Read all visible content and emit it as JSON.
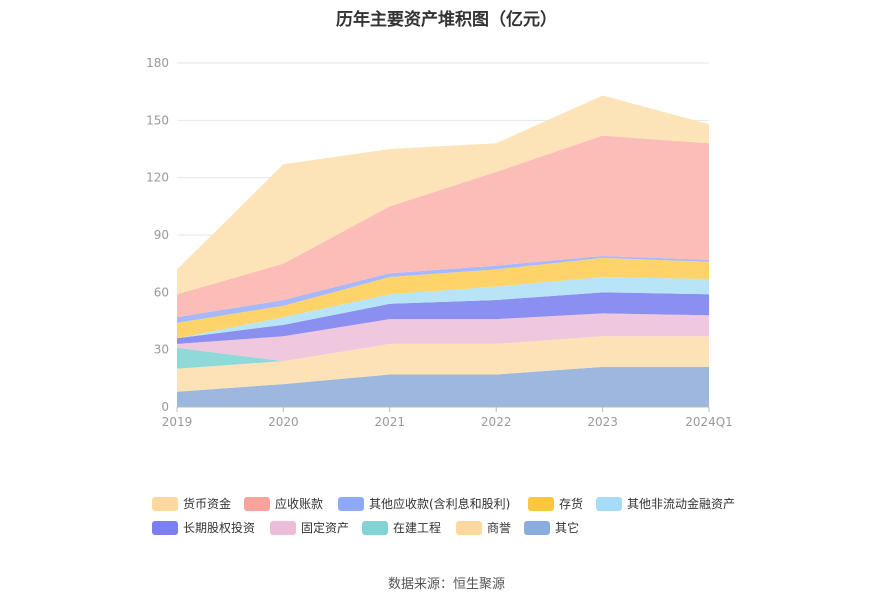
{
  "title": "历年主要资产堆积图（亿元）",
  "source": "数据来源：恒生聚源",
  "chart_data": {
    "type": "area",
    "stacked": true,
    "categories": [
      "2019",
      "2020",
      "2021",
      "2022",
      "2023",
      "2024Q1"
    ],
    "ylim": [
      0,
      180
    ],
    "yticks": [
      0,
      30,
      60,
      90,
      120,
      150,
      180
    ],
    "grid": true,
    "legend_position": "bottom",
    "series": [
      {
        "name": "其它",
        "color": "#9db7de",
        "values": [
          8,
          12,
          17,
          17,
          21,
          21
        ]
      },
      {
        "name": "商誉",
        "color": "#fde2b8",
        "values": [
          12,
          12,
          16,
          16,
          16,
          16
        ]
      },
      {
        "name": "在建工程",
        "color": "#90d9d9",
        "values": [
          11,
          0,
          0,
          0,
          0,
          0
        ]
      },
      {
        "name": "固定资产",
        "color": "#f0c8de",
        "values": [
          2,
          13,
          13,
          13,
          12,
          11
        ]
      },
      {
        "name": "长期股权投资",
        "color": "#8b8ff0",
        "values": [
          3,
          6,
          8,
          10,
          11,
          11
        ]
      },
      {
        "name": "其他非流动金融资产",
        "color": "#b8e4f8",
        "values": [
          0,
          4,
          5,
          7,
          8,
          8
        ]
      },
      {
        "name": "存货",
        "color": "#fdd36a",
        "values": [
          8,
          6,
          9,
          9,
          10,
          9
        ]
      },
      {
        "name": "其他应收款(含利息和股利)",
        "color": "#a8b8fc",
        "values": [
          3,
          3,
          2,
          2,
          1,
          1
        ]
      },
      {
        "name": "应收账款",
        "color": "#fcbcb8",
        "values": [
          12,
          19,
          35,
          49,
          63,
          61
        ]
      },
      {
        "name": "货币资金",
        "color": "#fde4b8",
        "values": [
          13,
          52,
          30,
          15,
          21,
          10
        ]
      }
    ]
  },
  "legend": {
    "items": [
      {
        "name": "货币资金",
        "color": "#fdd9a0"
      },
      {
        "name": "应收账款",
        "color": "#f9a39c"
      },
      {
        "name": "其他应收款(含利息和股利)",
        "color": "#8ea8fa"
      },
      {
        "name": "存货",
        "color": "#fcc63d"
      },
      {
        "name": "其他非流动金融资产",
        "color": "#a6dcf8"
      },
      {
        "name": "长期股权投资",
        "color": "#7b7ff2"
      },
      {
        "name": "固定资产",
        "color": "#ecbcd8"
      },
      {
        "name": "在建工程",
        "color": "#82d4d4"
      },
      {
        "name": "商誉",
        "color": "#fdd9a0"
      },
      {
        "name": "其它",
        "color": "#8aaedc"
      }
    ]
  }
}
